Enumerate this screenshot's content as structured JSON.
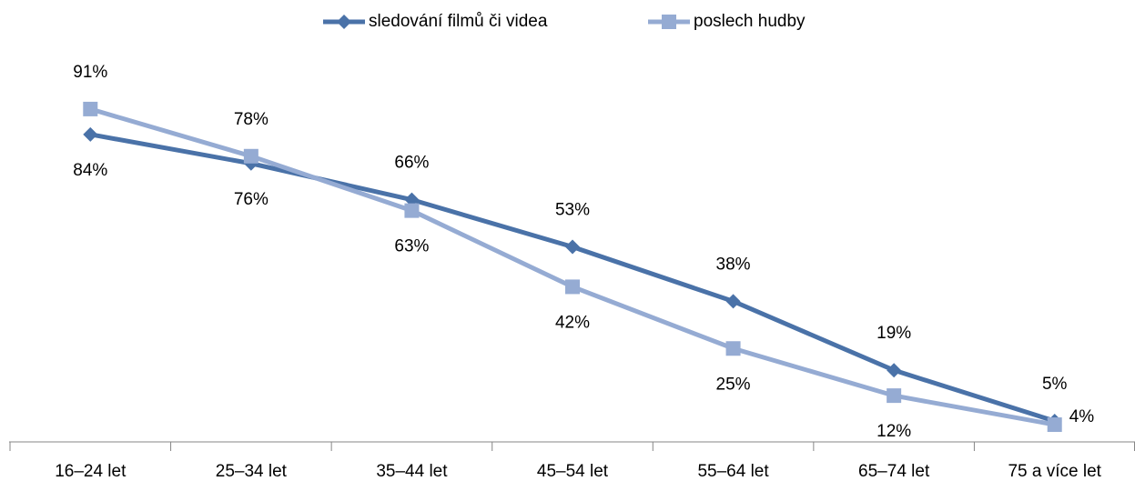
{
  "chart_data": {
    "type": "line",
    "categories": [
      "16–24 let",
      "25–34 let",
      "35–44 let",
      "45–54 let",
      "55–64 let",
      "65–74 let",
      "75 a více let"
    ],
    "series": [
      {
        "name": "sledování filmů či videa",
        "color": "#4a72a8",
        "marker": "diamond",
        "values": [
          84,
          76,
          66,
          53,
          38,
          19,
          5
        ],
        "value_labels": [
          "84%",
          "76%",
          "66%",
          "53%",
          "38%",
          "19%",
          "5%"
        ]
      },
      {
        "name": "poslech hudby",
        "color": "#95abd3",
        "marker": "square",
        "values": [
          91,
          78,
          63,
          42,
          25,
          12,
          4
        ],
        "value_labels": [
          "91%",
          "78%",
          "63%",
          "42%",
          "25%",
          "12%",
          "4%"
        ]
      }
    ],
    "ylim": [
      0,
      100
    ],
    "legend": "top"
  }
}
